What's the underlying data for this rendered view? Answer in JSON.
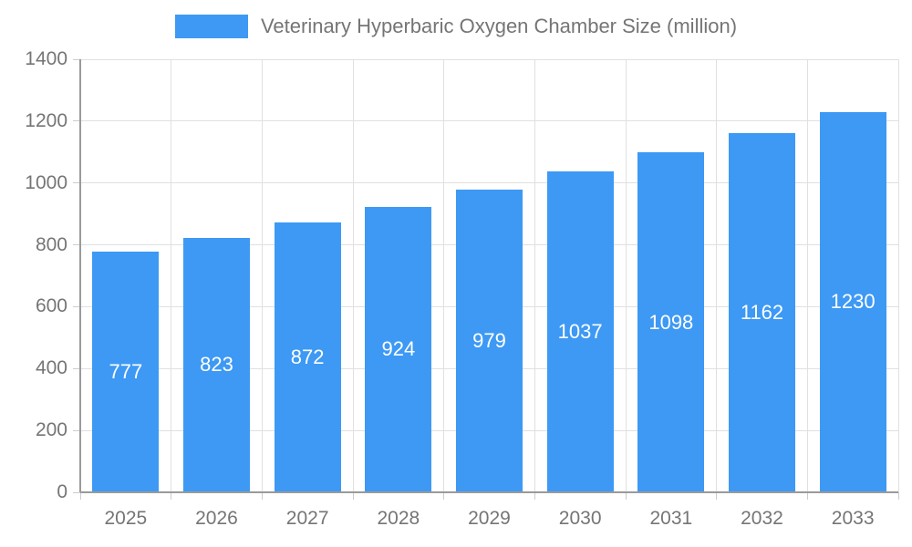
{
  "chart_data": {
    "type": "bar",
    "title": "Veterinary Hyperbaric Oxygen Chamber Size (million)",
    "categories": [
      "2025",
      "2026",
      "2027",
      "2028",
      "2029",
      "2030",
      "2031",
      "2032",
      "2033"
    ],
    "values": [
      777,
      823,
      872,
      924,
      979,
      1037,
      1098,
      1162,
      1230
    ],
    "xlabel": "",
    "ylabel": "",
    "ylim": [
      0,
      1400
    ],
    "ytick_step": 200,
    "ytick_labels": [
      "0",
      "200",
      "400",
      "600",
      "800",
      "1000",
      "1200",
      "1400"
    ],
    "grid": true,
    "legend_position": "top",
    "bar_color": "#3d99f4",
    "value_label_color": "#ffffff",
    "axis_text_color": "#757575",
    "grid_color": "#e0e0e0",
    "tick_color": "#cccccc",
    "axis_line_color": "#9a9a9a"
  }
}
